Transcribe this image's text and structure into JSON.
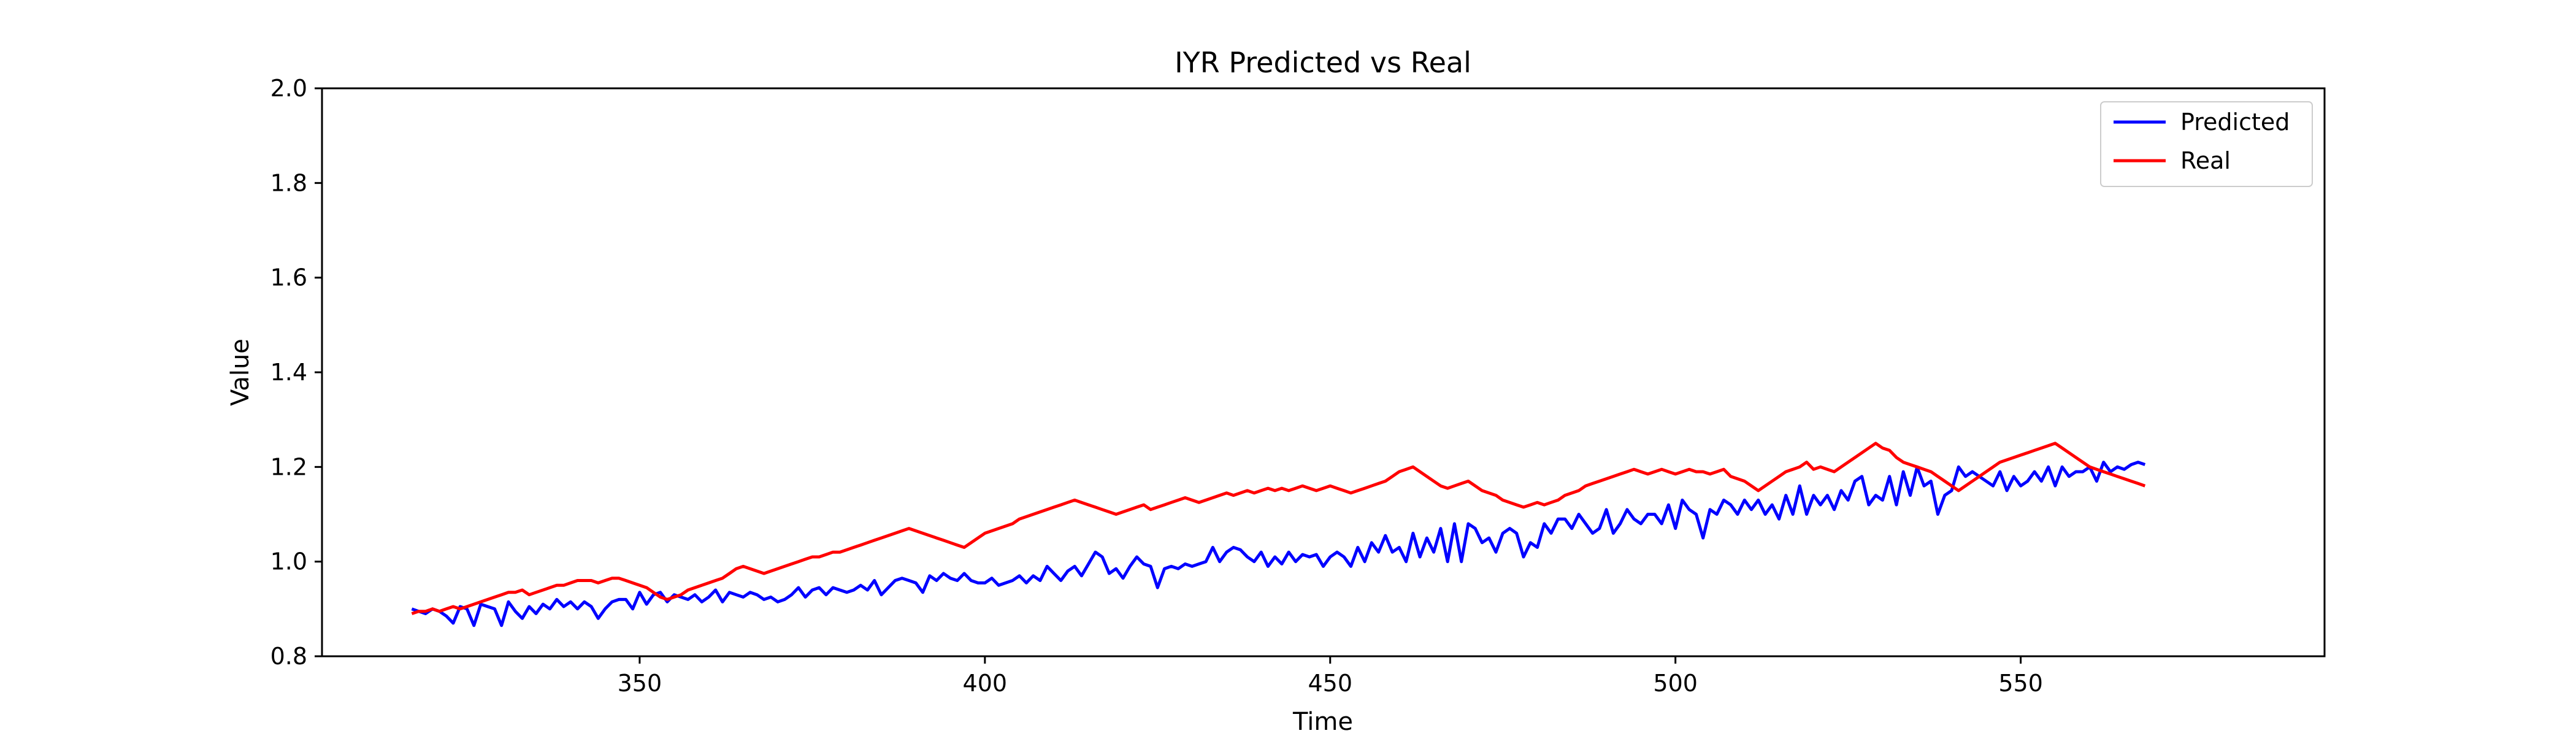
{
  "chart_data": {
    "type": "line",
    "title": "IYR Predicted vs Real",
    "xlabel": "Time",
    "ylabel": "Value",
    "xlim": [
      304,
      594
    ],
    "ylim": [
      0.8,
      2.0
    ],
    "xticks": [
      350,
      400,
      450,
      500,
      550
    ],
    "yticks": [
      0.8,
      1.0,
      1.2,
      1.4,
      1.6,
      1.8,
      2.0
    ],
    "xtick_labels": [
      "350",
      "400",
      "450",
      "500",
      "550"
    ],
    "ytick_labels": [
      "0.8",
      "1.0",
      "1.2",
      "1.4",
      "1.6",
      "1.8",
      "2.0"
    ],
    "grid": false,
    "legend_position": "upper right",
    "x_start": 317,
    "series": [
      {
        "name": "Predicted",
        "color": "#0000ff",
        "values": [
          0.9,
          0.895,
          0.89,
          0.9,
          0.895,
          0.885,
          0.87,
          0.905,
          0.9,
          0.865,
          0.91,
          0.905,
          0.9,
          0.865,
          0.915,
          0.895,
          0.88,
          0.905,
          0.89,
          0.91,
          0.9,
          0.92,
          0.905,
          0.915,
          0.9,
          0.915,
          0.905,
          0.88,
          0.9,
          0.915,
          0.92,
          0.92,
          0.9,
          0.935,
          0.91,
          0.93,
          0.935,
          0.915,
          0.93,
          0.925,
          0.92,
          0.93,
          0.915,
          0.925,
          0.94,
          0.915,
          0.935,
          0.93,
          0.925,
          0.935,
          0.93,
          0.92,
          0.925,
          0.915,
          0.92,
          0.93,
          0.945,
          0.925,
          0.94,
          0.945,
          0.93,
          0.945,
          0.94,
          0.935,
          0.94,
          0.95,
          0.94,
          0.96,
          0.93,
          0.945,
          0.96,
          0.965,
          0.96,
          0.955,
          0.935,
          0.97,
          0.96,
          0.975,
          0.965,
          0.96,
          0.975,
          0.96,
          0.955,
          0.955,
          0.965,
          0.95,
          0.955,
          0.96,
          0.97,
          0.955,
          0.97,
          0.96,
          0.99,
          0.975,
          0.96,
          0.98,
          0.99,
          0.97,
          0.995,
          1.02,
          1.01,
          0.975,
          0.985,
          0.965,
          0.99,
          1.01,
          0.995,
          0.99,
          0.945,
          0.985,
          0.99,
          0.985,
          0.995,
          0.99,
          0.995,
          1.0,
          1.03,
          1.0,
          1.02,
          1.03,
          1.025,
          1.01,
          1.0,
          1.02,
          0.99,
          1.01,
          0.995,
          1.02,
          1.0,
          1.015,
          1.01,
          1.015,
          0.99,
          1.01,
          1.02,
          1.01,
          0.99,
          1.03,
          1.0,
          1.04,
          1.02,
          1.055,
          1.02,
          1.03,
          1.0,
          1.06,
          1.01,
          1.05,
          1.02,
          1.07,
          1.0,
          1.08,
          1.0,
          1.08,
          1.07,
          1.04,
          1.05,
          1.02,
          1.06,
          1.07,
          1.06,
          1.01,
          1.04,
          1.03,
          1.08,
          1.06,
          1.09,
          1.09,
          1.07,
          1.1,
          1.08,
          1.06,
          1.07,
          1.11,
          1.06,
          1.08,
          1.11,
          1.09,
          1.08,
          1.1,
          1.1,
          1.08,
          1.12,
          1.07,
          1.13,
          1.11,
          1.1,
          1.05,
          1.11,
          1.1,
          1.13,
          1.12,
          1.1,
          1.13,
          1.11,
          1.13,
          1.1,
          1.12,
          1.09,
          1.14,
          1.1,
          1.16,
          1.1,
          1.14,
          1.12,
          1.14,
          1.11,
          1.15,
          1.13,
          1.17,
          1.18,
          1.12,
          1.14,
          1.13,
          1.18,
          1.12,
          1.19,
          1.14,
          1.2,
          1.16,
          1.17,
          1.1,
          1.14,
          1.15,
          1.2,
          1.18,
          1.19,
          1.18,
          1.17,
          1.16,
          1.19,
          1.15,
          1.18,
          1.16,
          1.17,
          1.19,
          1.17,
          1.2,
          1.16,
          1.2,
          1.18,
          1.19,
          1.19,
          1.2,
          1.17,
          1.21,
          1.19,
          1.2,
          1.195,
          1.205,
          1.21,
          1.205
        ]
      },
      {
        "name": "Real",
        "color": "#ff0000",
        "values": [
          0.89,
          0.895,
          0.895,
          0.9,
          0.895,
          0.9,
          0.905,
          0.9,
          0.905,
          0.91,
          0.915,
          0.92,
          0.925,
          0.93,
          0.935,
          0.935,
          0.94,
          0.93,
          0.935,
          0.94,
          0.945,
          0.95,
          0.95,
          0.955,
          0.96,
          0.96,
          0.96,
          0.955,
          0.96,
          0.965,
          0.965,
          0.96,
          0.955,
          0.95,
          0.945,
          0.935,
          0.925,
          0.92,
          0.925,
          0.93,
          0.94,
          0.945,
          0.95,
          0.955,
          0.96,
          0.965,
          0.975,
          0.985,
          0.99,
          0.985,
          0.98,
          0.975,
          0.98,
          0.985,
          0.99,
          0.995,
          1.0,
          1.005,
          1.01,
          1.01,
          1.015,
          1.02,
          1.02,
          1.025,
          1.03,
          1.035,
          1.04,
          1.045,
          1.05,
          1.055,
          1.06,
          1.065,
          1.07,
          1.065,
          1.06,
          1.055,
          1.05,
          1.045,
          1.04,
          1.035,
          1.03,
          1.04,
          1.05,
          1.06,
          1.065,
          1.07,
          1.075,
          1.08,
          1.09,
          1.095,
          1.1,
          1.105,
          1.11,
          1.115,
          1.12,
          1.125,
          1.13,
          1.125,
          1.12,
          1.115,
          1.11,
          1.105,
          1.1,
          1.105,
          1.11,
          1.115,
          1.12,
          1.11,
          1.115,
          1.12,
          1.125,
          1.13,
          1.135,
          1.13,
          1.125,
          1.13,
          1.135,
          1.14,
          1.145,
          1.14,
          1.145,
          1.15,
          1.145,
          1.15,
          1.155,
          1.15,
          1.155,
          1.15,
          1.155,
          1.16,
          1.155,
          1.15,
          1.155,
          1.16,
          1.155,
          1.15,
          1.145,
          1.15,
          1.155,
          1.16,
          1.165,
          1.17,
          1.18,
          1.19,
          1.195,
          1.2,
          1.19,
          1.18,
          1.17,
          1.16,
          1.155,
          1.16,
          1.165,
          1.17,
          1.16,
          1.15,
          1.145,
          1.14,
          1.13,
          1.125,
          1.12,
          1.115,
          1.12,
          1.125,
          1.12,
          1.125,
          1.13,
          1.14,
          1.145,
          1.15,
          1.16,
          1.165,
          1.17,
          1.175,
          1.18,
          1.185,
          1.19,
          1.195,
          1.19,
          1.185,
          1.19,
          1.195,
          1.19,
          1.185,
          1.19,
          1.195,
          1.19,
          1.19,
          1.185,
          1.19,
          1.195,
          1.18,
          1.175,
          1.17,
          1.16,
          1.15,
          1.16,
          1.17,
          1.18,
          1.19,
          1.195,
          1.2,
          1.21,
          1.195,
          1.2,
          1.195,
          1.19,
          1.2,
          1.21,
          1.22,
          1.23,
          1.24,
          1.25,
          1.24,
          1.235,
          1.22,
          1.21,
          1.205,
          1.2,
          1.195,
          1.19,
          1.18,
          1.17,
          1.16,
          1.15,
          1.16,
          1.17,
          1.18,
          1.19,
          1.2,
          1.21,
          1.215,
          1.22,
          1.225,
          1.23,
          1.235,
          1.24,
          1.245,
          1.25,
          1.24,
          1.23,
          1.22,
          1.21,
          1.2,
          1.195,
          1.19,
          1.185,
          1.18,
          1.175,
          1.17,
          1.165,
          1.16
        ]
      }
    ]
  }
}
